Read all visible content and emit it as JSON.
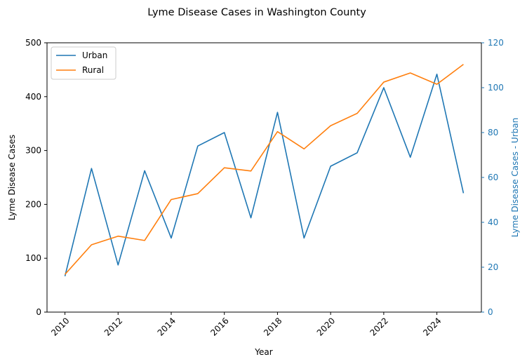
{
  "chart_data": {
    "type": "line",
    "title": "Lyme Disease Cases in Washington County",
    "xlabel": "Year",
    "ylabel_left": "Lyme Disease Cases",
    "ylabel_right": "Lyme Disease Cases - Urban",
    "x": [
      2010,
      2011,
      2012,
      2013,
      2014,
      2015,
      2016,
      2017,
      2018,
      2019,
      2020,
      2021,
      2022,
      2023,
      2024,
      2025
    ],
    "x_ticks": [
      2010,
      2012,
      2014,
      2016,
      2018,
      2020,
      2022,
      2024
    ],
    "ylim_left": [
      0,
      500
    ],
    "yticks_left": [
      0,
      100,
      200,
      300,
      400,
      500
    ],
    "ylim_right": [
      0,
      120
    ],
    "yticks_right": [
      0,
      20,
      40,
      60,
      80,
      100,
      120
    ],
    "legend_position": "upper-left",
    "grid": false,
    "series": [
      {
        "name": "Urban",
        "axis": "right",
        "color": "#1f77b4",
        "values": [
          16,
          64,
          21,
          63,
          33,
          74,
          80,
          42,
          89,
          33,
          65,
          71,
          100,
          69,
          106,
          53
        ]
      },
      {
        "name": "Rural",
        "axis": "left",
        "color": "#ff7f0e",
        "values": [
          70,
          125,
          141,
          133,
          209,
          220,
          268,
          262,
          335,
          303,
          346,
          369,
          427,
          444,
          423,
          460
        ]
      }
    ]
  }
}
